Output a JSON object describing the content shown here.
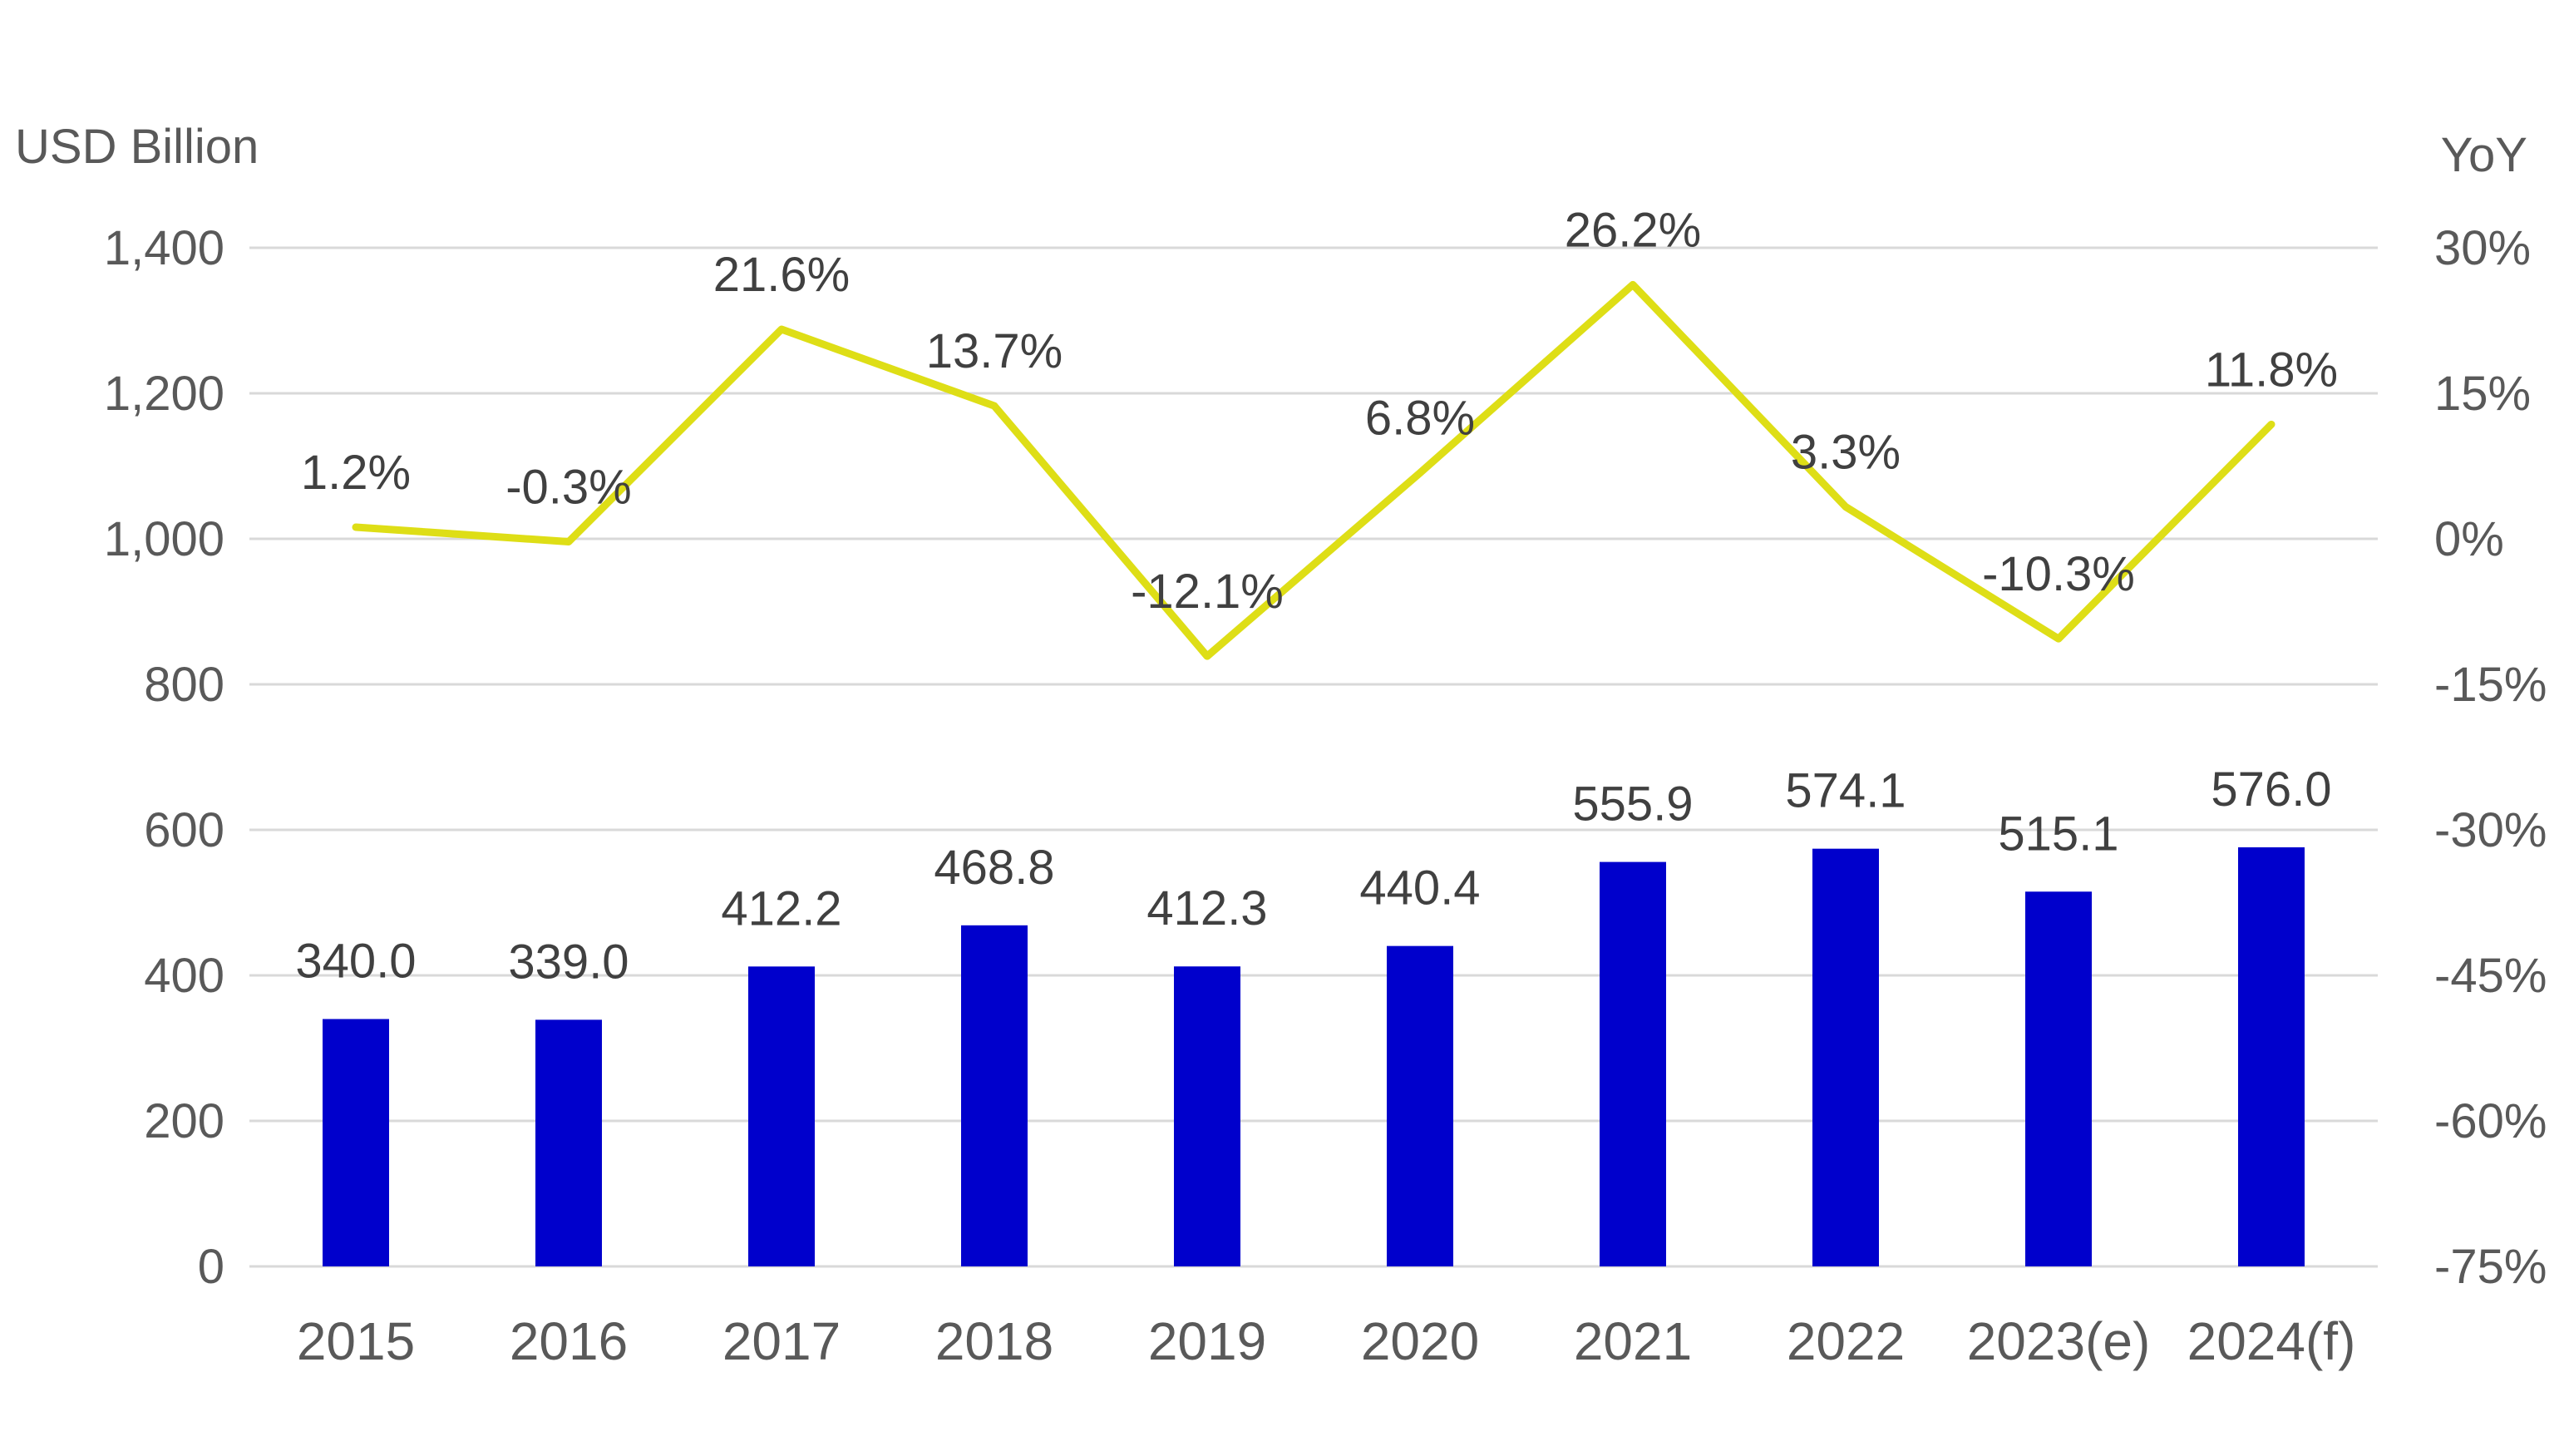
{
  "chart_data": {
    "type": "bar",
    "categories": [
      "2015",
      "2016",
      "2017",
      "2018",
      "2019",
      "2020",
      "2021",
      "2022",
      "2023(e)",
      "2024(f)"
    ],
    "series": [
      {
        "type": "bar",
        "axis": "left",
        "values": [
          340.0,
          339.0,
          412.2,
          468.8,
          412.3,
          440.4,
          555.9,
          574.1,
          515.1,
          576.0
        ],
        "labels": [
          "340.0",
          "339.0",
          "412.2",
          "468.8",
          "412.3",
          "440.4",
          "555.9",
          "574.1",
          "515.1",
          "576.0"
        ],
        "color": "#0000cc"
      },
      {
        "type": "line",
        "axis": "right",
        "values": [
          1.2,
          -0.3,
          21.6,
          13.7,
          -12.1,
          6.8,
          26.2,
          3.3,
          -10.3,
          11.8
        ],
        "labels": [
          "1.2%",
          "-0.3%",
          "21.6%",
          "13.7%",
          "-12.1%",
          "6.8%",
          "26.2%",
          "3.3%",
          "-10.3%",
          "11.8%"
        ],
        "color": "#dede16"
      }
    ],
    "ylabel": "USD Billion",
    "ylabel_right": "YoY",
    "ylim": [
      0,
      1400
    ],
    "ylim_right": [
      -75,
      30
    ],
    "yticks": [
      "0",
      "200",
      "400",
      "600",
      "800",
      "1,000",
      "1,200",
      "1,400"
    ],
    "yticks_right": [
      "-75%",
      "-60%",
      "-45%",
      "-30%",
      "-15%",
      "0%",
      "15%",
      "30%"
    ],
    "grid": true,
    "legend": false
  }
}
